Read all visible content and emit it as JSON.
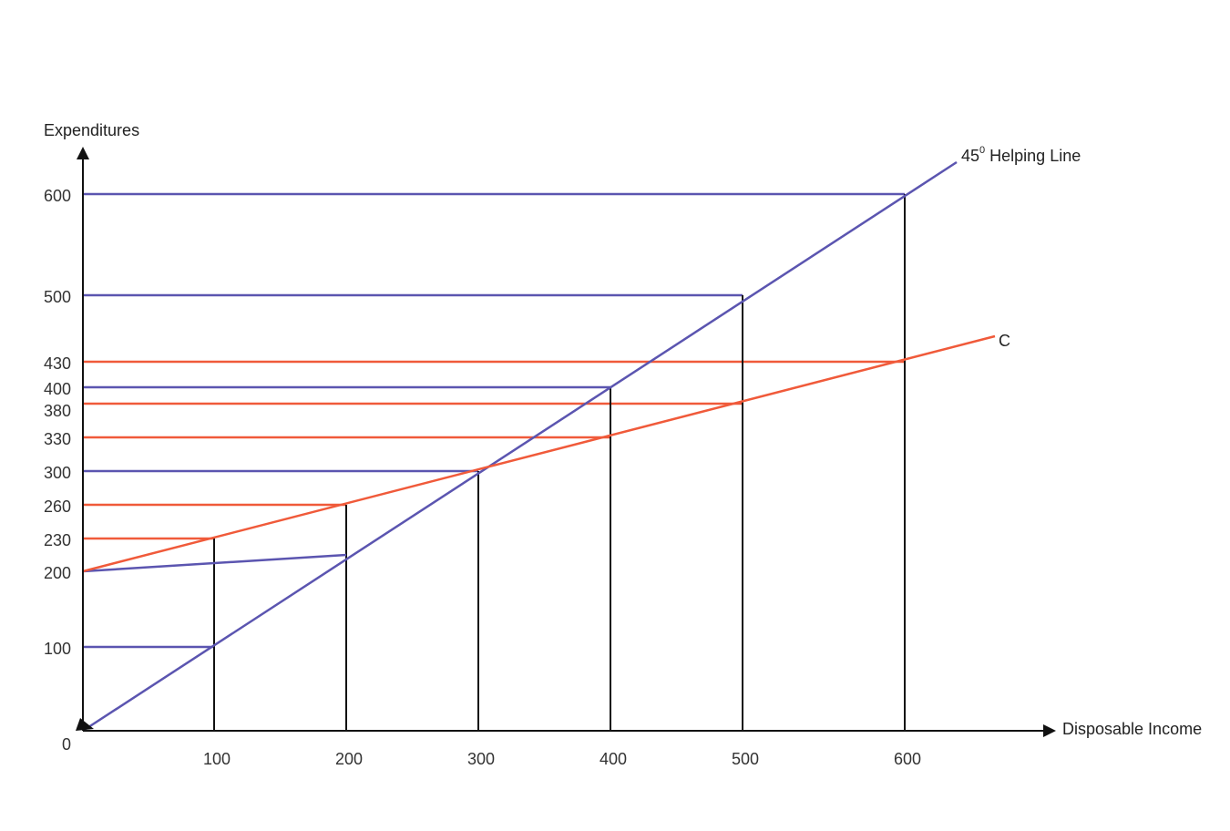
{
  "chart_data": {
    "type": "line",
    "xlabel": "Disposable Income",
    "ylabel": "Expenditures",
    "origin_label": "0",
    "x_ticks": [
      100,
      200,
      300,
      400,
      500,
      600
    ],
    "y_ticks": [
      100,
      200,
      230,
      260,
      300,
      330,
      380,
      400,
      430,
      500,
      600
    ],
    "series": [
      {
        "name": "45⁰ Helping Line",
        "label_main": "45",
        "label_sup": "0",
        "label_rest": " Helping Line",
        "color": "#5b55b0",
        "x": [
          0,
          100,
          200,
          300,
          400,
          500,
          600
        ],
        "y": [
          0,
          100,
          200,
          300,
          400,
          500,
          600
        ]
      },
      {
        "name": "C",
        "color": "#f05a3a",
        "x": [
          0,
          100,
          200,
          300,
          400,
          500,
          600
        ],
        "y": [
          200,
          230,
          260,
          300,
          330,
          380,
          430
        ]
      }
    ],
    "blue_guides_y": [
      100,
      300,
      400,
      500,
      600
    ],
    "red_guides_y": [
      230,
      260,
      330,
      380,
      430
    ],
    "vertical_guides": [
      {
        "x": 100,
        "y": 230
      },
      {
        "x": 200,
        "y": 260
      },
      {
        "x": 300,
        "y": 300
      },
      {
        "x": 400,
        "y": 400
      },
      {
        "x": 500,
        "y": 500
      },
      {
        "x": 600,
        "y": 600
      }
    ],
    "extra_segment": {
      "x1": 0,
      "y1": 200,
      "x2": 200,
      "y2": 215
    },
    "colors": {
      "axis": "#111111",
      "blue": "#5b55b0",
      "red": "#f05a3a",
      "vertical": "#111111"
    }
  }
}
